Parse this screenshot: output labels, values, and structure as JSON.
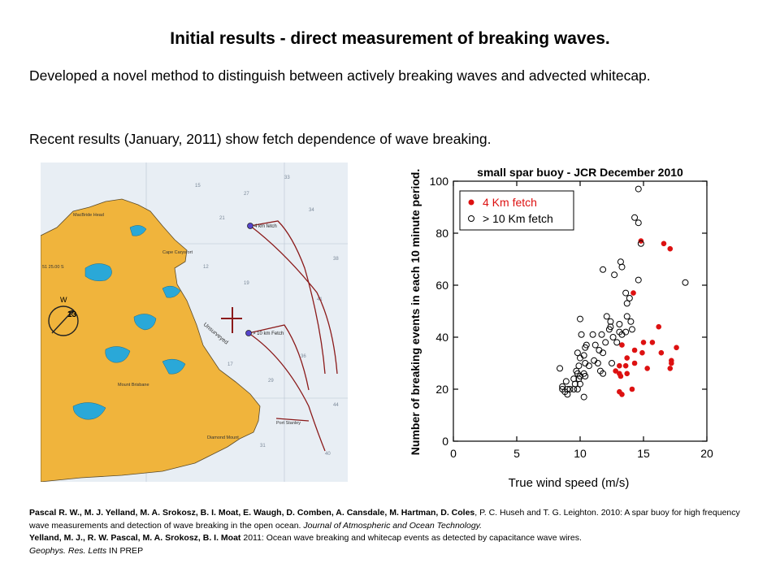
{
  "slide": {
    "title": "Initial results - direct measurement of breaking waves.",
    "paragraph1": "Developed a novel method to distinguish between actively breaking waves and advected whitecap.",
    "paragraph2": "Recent results (January, 2011) show fetch dependence of wave breaking."
  },
  "map": {
    "labels": {
      "fetch_4km": "4 km fetch",
      "fetch_10km": "> 10 km Fetch",
      "compass_number": "13",
      "compass_letter": "W",
      "macbride": "MacBride Head",
      "cape_carysfort": "Cape Carysfort",
      "mount_brisbane": "Mount Brisbane",
      "diamond_mount": "Diamond Mount",
      "latitude": "51 25.00 S",
      "port_stanley": "Port Stanley",
      "uncharted": "Unsurveyed"
    },
    "colors": {
      "land": "#f0b43c",
      "water": "#e8eef4",
      "lake": "#2aa8d8",
      "track": "#8b1a1a"
    }
  },
  "chart_data": {
    "type": "scatter",
    "title": "small spar buoy - JCR December 2010",
    "xlabel": "True wind speed (m/s)",
    "ylabel": "Number of breaking events in each 10 minute period.",
    "xlim": [
      0,
      20
    ],
    "ylim": [
      0,
      100
    ],
    "xticks": [
      0,
      5,
      10,
      15,
      20
    ],
    "yticks": [
      0,
      20,
      40,
      60,
      80,
      100
    ],
    "legend_position": "top-left",
    "series": [
      {
        "name": "4 Km fetch",
        "color": "#dd1111",
        "marker": "filled",
        "points": [
          [
            14.8,
            77
          ],
          [
            16.6,
            76
          ],
          [
            17.1,
            74
          ],
          [
            14.2,
            57
          ],
          [
            16.2,
            44
          ],
          [
            17.6,
            36
          ],
          [
            15.7,
            38
          ],
          [
            14.3,
            35
          ],
          [
            14.9,
            34
          ],
          [
            16.4,
            34
          ],
          [
            13.3,
            37
          ],
          [
            15.0,
            38
          ],
          [
            13.7,
            32
          ],
          [
            14.3,
            30
          ],
          [
            13.1,
            29
          ],
          [
            17.2,
            31
          ],
          [
            17.2,
            30
          ],
          [
            12.8,
            27
          ],
          [
            13.2,
            25
          ],
          [
            13.1,
            26
          ],
          [
            15.3,
            28
          ],
          [
            17.1,
            28
          ],
          [
            13.7,
            26
          ],
          [
            14.1,
            20
          ],
          [
            13.3,
            18
          ],
          [
            13.1,
            19
          ],
          [
            13.6,
            29
          ]
        ]
      },
      {
        "name": "> 10 Km fetch",
        "color": "#000000",
        "marker": "open",
        "points": [
          [
            14.6,
            97
          ],
          [
            14.8,
            76
          ],
          [
            14.3,
            86
          ],
          [
            14.6,
            84
          ],
          [
            12.7,
            64
          ],
          [
            13.3,
            67
          ],
          [
            11.8,
            66
          ],
          [
            13.2,
            69
          ],
          [
            14.6,
            62
          ],
          [
            18.3,
            61
          ],
          [
            13.7,
            53
          ],
          [
            13.9,
            55
          ],
          [
            13.6,
            57
          ],
          [
            12.1,
            48
          ],
          [
            13.7,
            48
          ],
          [
            14.0,
            46
          ],
          [
            12.4,
            46
          ],
          [
            10.0,
            47
          ],
          [
            12.4,
            44
          ],
          [
            13.1,
            45
          ],
          [
            12.3,
            43
          ],
          [
            13.1,
            42
          ],
          [
            13.6,
            42
          ],
          [
            14.1,
            43
          ],
          [
            12.6,
            40
          ],
          [
            13.3,
            41
          ],
          [
            10.1,
            41
          ],
          [
            11.0,
            41
          ],
          [
            11.7,
            41
          ],
          [
            12.0,
            38
          ],
          [
            12.9,
            38
          ],
          [
            10.5,
            37
          ],
          [
            11.2,
            37
          ],
          [
            10.4,
            36
          ],
          [
            11.5,
            35
          ],
          [
            11.8,
            34
          ],
          [
            9.8,
            34
          ],
          [
            10.3,
            33
          ],
          [
            10.0,
            32
          ],
          [
            11.1,
            31
          ],
          [
            11.4,
            30
          ],
          [
            10.4,
            30
          ],
          [
            10.7,
            29
          ],
          [
            9.9,
            29
          ],
          [
            9.7,
            27
          ],
          [
            11.6,
            27
          ],
          [
            12.5,
            30
          ],
          [
            9.8,
            26
          ],
          [
            10.3,
            26
          ],
          [
            10.0,
            25
          ],
          [
            10.4,
            25
          ],
          [
            9.5,
            24
          ],
          [
            9.9,
            24
          ],
          [
            9.6,
            22
          ],
          [
            10.0,
            22
          ],
          [
            8.9,
            23
          ],
          [
            8.6,
            21
          ],
          [
            9.2,
            20
          ],
          [
            9.5,
            20
          ],
          [
            9.0,
            20
          ],
          [
            9.8,
            20
          ],
          [
            8.8,
            19
          ],
          [
            9.0,
            18
          ],
          [
            8.6,
            20
          ],
          [
            10.3,
            17
          ],
          [
            8.4,
            28
          ],
          [
            11.8,
            26
          ]
        ]
      }
    ]
  },
  "refs": {
    "r1_authors_bold": "Pascal R. W., M. J. Yelland, M. A. Srokosz, B. I. Moat, E. Waugh, D. Comben, A. Cansdale, M. Hartman, D. Coles",
    "r1_authors_rest": ", P. C. Huseh and T. G. Leighton. 2010: A spar buoy for high frequency wave measurements and detection of wave breaking in the open ocean.",
    "r1_journal": "Journal of Atmospheric and Ocean Technology.",
    "r2_authors_bold": "Yelland, M. J., R. W. Pascal, M. A. Srokosz, B. I. Moat",
    "r2_rest": " 2011: Ocean wave breaking and whitecap events as detected by capacitance wave wires.",
    "r2_journal": "Geophys. Res. Letts",
    "r2_status": " IN PREP"
  }
}
